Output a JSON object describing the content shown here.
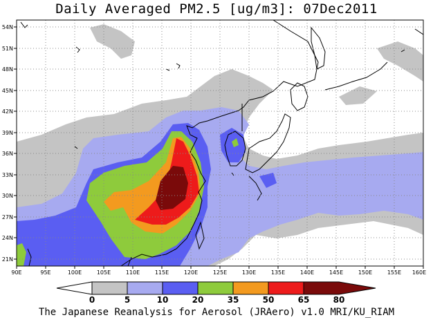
{
  "title": "Daily Averaged PM2.5 [ug/m3]: 07Dec2011",
  "credit": "The Japanese Reanalysis for Aerosol (JRAero) v1.0 MRI/KU_RIAM",
  "map": {
    "lon_range": [
      90,
      160
    ],
    "lat_range": [
      20,
      55
    ],
    "lon_ticks": [
      "90E",
      "95E",
      "100E",
      "105E",
      "110E",
      "115E",
      "120E",
      "125E",
      "130E",
      "135E",
      "140E",
      "145E",
      "150E",
      "155E",
      "160E"
    ],
    "lat_ticks": [
      "21N",
      "24N",
      "27N",
      "30N",
      "33N",
      "36N",
      "39N",
      "42N",
      "45N",
      "48N",
      "51N",
      "54N"
    ],
    "grid": "dotted"
  },
  "colorbar": {
    "labels": [
      "0",
      "5",
      "10",
      "20",
      "35",
      "50",
      "65",
      "80"
    ],
    "colors": [
      "#ffffff",
      "#c4c4c4",
      "#a7aaf0",
      "#5a5ef2",
      "#8ecb3c",
      "#f39a1f",
      "#ed1b1b",
      "#7a0a0a"
    ]
  }
}
